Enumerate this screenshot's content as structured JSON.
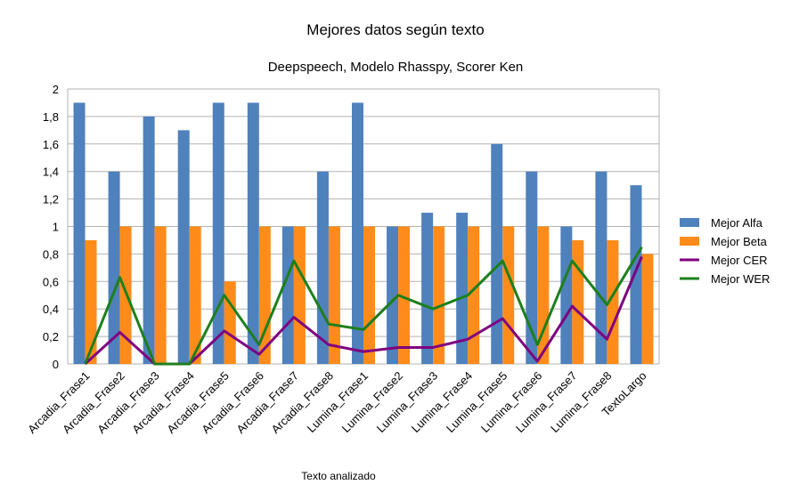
{
  "chart_data": {
    "type": "bar",
    "title": "Mejores datos según texto",
    "subtitle": "Deepspeech, Modelo Rhasspy, Scorer Ken",
    "xlabel": "Texto analizado",
    "ylabel": "",
    "ylim": [
      0,
      2
    ],
    "yticks": [
      "0",
      "0,2",
      "0,4",
      "0,6",
      "0,8",
      "1",
      "1,2",
      "1,4",
      "1,6",
      "1,8",
      "2"
    ],
    "grid": true,
    "legend_position": "right",
    "categories": [
      "Arcadia_Frase1",
      "Arcadia_Frase2",
      "Arcadia_Frase3",
      "Arcadia_Frase4",
      "Arcadia_Frase5",
      "Arcadia_Frase6",
      "Arcadia_Frase7",
      "Arcadia_Frase8",
      "Lumina_Frase1",
      "Lumina_Frase2",
      "Lumina_Frase3",
      "Lumina_Frase4",
      "Lumina_Frase5",
      "Lumina_Frase6",
      "Lumina_Frase7",
      "Lumina_Frase8",
      "TextoLargo"
    ],
    "series": [
      {
        "name": "Mejor Alfa",
        "kind": "bar",
        "color": "#4f81bd",
        "values": [
          1.9,
          1.4,
          1.8,
          1.7,
          1.9,
          1.9,
          1.0,
          1.4,
          1.9,
          1.0,
          1.1,
          1.1,
          1.6,
          1.4,
          1.0,
          1.4,
          1.3
        ]
      },
      {
        "name": "Mejor Beta",
        "kind": "bar",
        "color": "#ff8c1a",
        "values": [
          0.9,
          1.0,
          1.0,
          1.0,
          0.6,
          1.0,
          1.0,
          1.0,
          1.0,
          1.0,
          1.0,
          1.0,
          1.0,
          1.0,
          0.9,
          0.9,
          0.8
        ]
      },
      {
        "name": "Mejor CER",
        "kind": "line",
        "color": "#7e0080",
        "values": [
          0.0,
          0.23,
          0.0,
          0.0,
          0.24,
          0.07,
          0.34,
          0.14,
          0.09,
          0.12,
          0.12,
          0.18,
          0.33,
          0.02,
          0.42,
          0.18,
          0.78
        ]
      },
      {
        "name": "Mejor WER",
        "kind": "line",
        "color": "#1d7f1d",
        "values": [
          0.0,
          0.63,
          0.0,
          0.0,
          0.5,
          0.14,
          0.75,
          0.29,
          0.25,
          0.5,
          0.4,
          0.5,
          0.75,
          0.14,
          0.75,
          0.43,
          0.85
        ]
      }
    ]
  }
}
